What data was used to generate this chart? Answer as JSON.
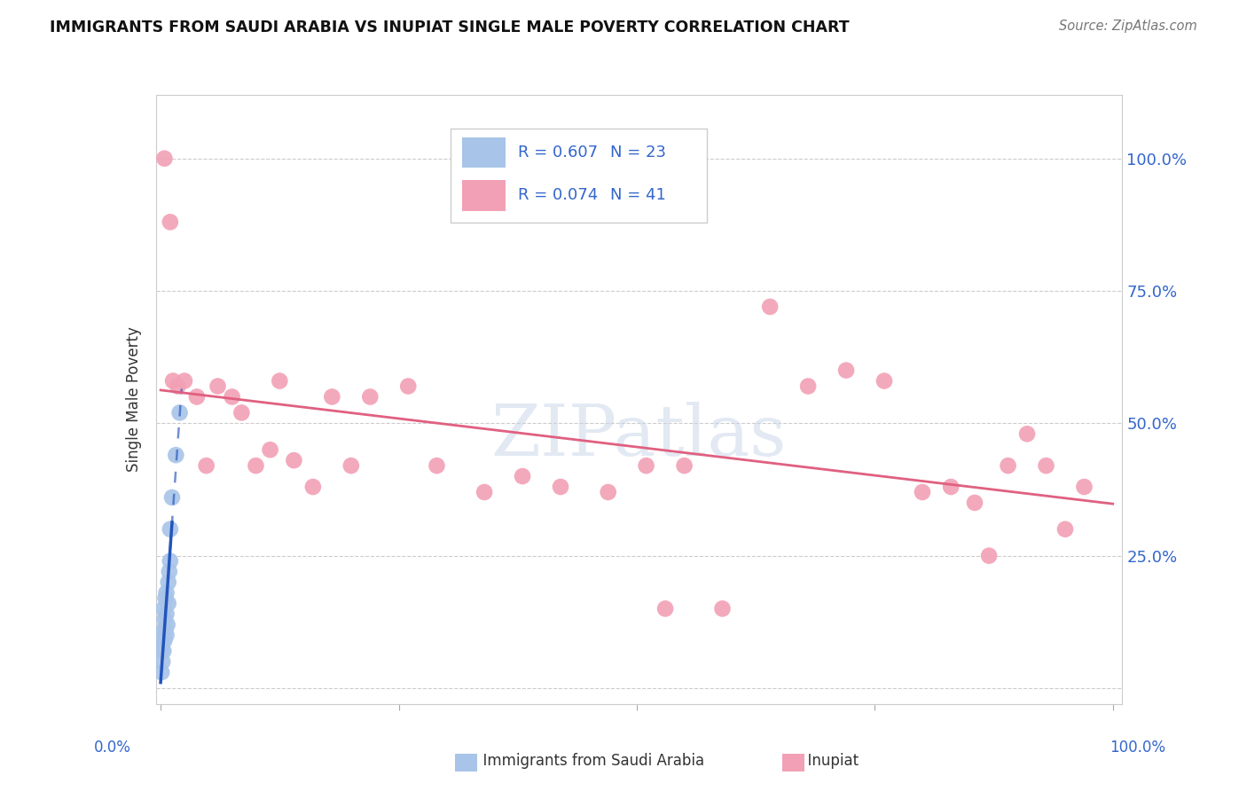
{
  "title": "IMMIGRANTS FROM SAUDI ARABIA VS INUPIAT SINGLE MALE POVERTY CORRELATION CHART",
  "source": "Source: ZipAtlas.com",
  "ylabel": "Single Male Poverty",
  "legend_r1": "R = 0.607",
  "legend_n1": "N = 23",
  "legend_r2": "R = 0.074",
  "legend_n2": "N = 41",
  "blue_color": "#a8c4e8",
  "pink_color": "#f2a0b5",
  "blue_line_color": "#2255bb",
  "pink_line_color": "#e06080",
  "legend_text_color": "#3366cc",
  "watermark": "ZIPatlas",
  "watermark_color": "#c8d4e8",
  "blue_x": [
    0.001,
    0.001,
    0.002,
    0.002,
    0.003,
    0.003,
    0.003,
    0.004,
    0.004,
    0.005,
    0.005,
    0.006,
    0.006,
    0.006,
    0.007,
    0.008,
    0.008,
    0.009,
    0.01,
    0.01,
    0.012,
    0.016,
    0.02
  ],
  "blue_y": [
    0.03,
    0.07,
    0.05,
    0.09,
    0.07,
    0.11,
    0.15,
    0.09,
    0.13,
    0.11,
    0.17,
    0.1,
    0.14,
    0.18,
    0.12,
    0.16,
    0.2,
    0.22,
    0.24,
    0.3,
    0.36,
    0.44,
    0.52
  ],
  "pink_x": [
    0.004,
    0.01,
    0.013,
    0.018,
    0.025,
    0.038,
    0.048,
    0.06,
    0.075,
    0.085,
    0.1,
    0.115,
    0.125,
    0.14,
    0.16,
    0.18,
    0.2,
    0.22,
    0.26,
    0.29,
    0.34,
    0.38,
    0.42,
    0.47,
    0.51,
    0.53,
    0.55,
    0.59,
    0.64,
    0.68,
    0.72,
    0.76,
    0.8,
    0.83,
    0.855,
    0.87,
    0.89,
    0.91,
    0.93,
    0.95,
    0.97
  ],
  "pink_y": [
    1.0,
    0.88,
    0.58,
    0.57,
    0.58,
    0.55,
    0.42,
    0.57,
    0.55,
    0.52,
    0.42,
    0.45,
    0.58,
    0.43,
    0.38,
    0.55,
    0.42,
    0.55,
    0.57,
    0.42,
    0.37,
    0.4,
    0.38,
    0.37,
    0.42,
    0.15,
    0.42,
    0.15,
    0.72,
    0.57,
    0.6,
    0.58,
    0.37,
    0.38,
    0.35,
    0.25,
    0.42,
    0.48,
    0.42,
    0.3,
    0.38
  ],
  "ytick_values": [
    0.0,
    0.25,
    0.5,
    0.75,
    1.0
  ],
  "ytick_labels": [
    "",
    "25.0%",
    "50.0%",
    "75.0%",
    "100.0%"
  ],
  "xlim": [
    -0.005,
    1.01
  ],
  "ylim": [
    -0.03,
    1.12
  ]
}
